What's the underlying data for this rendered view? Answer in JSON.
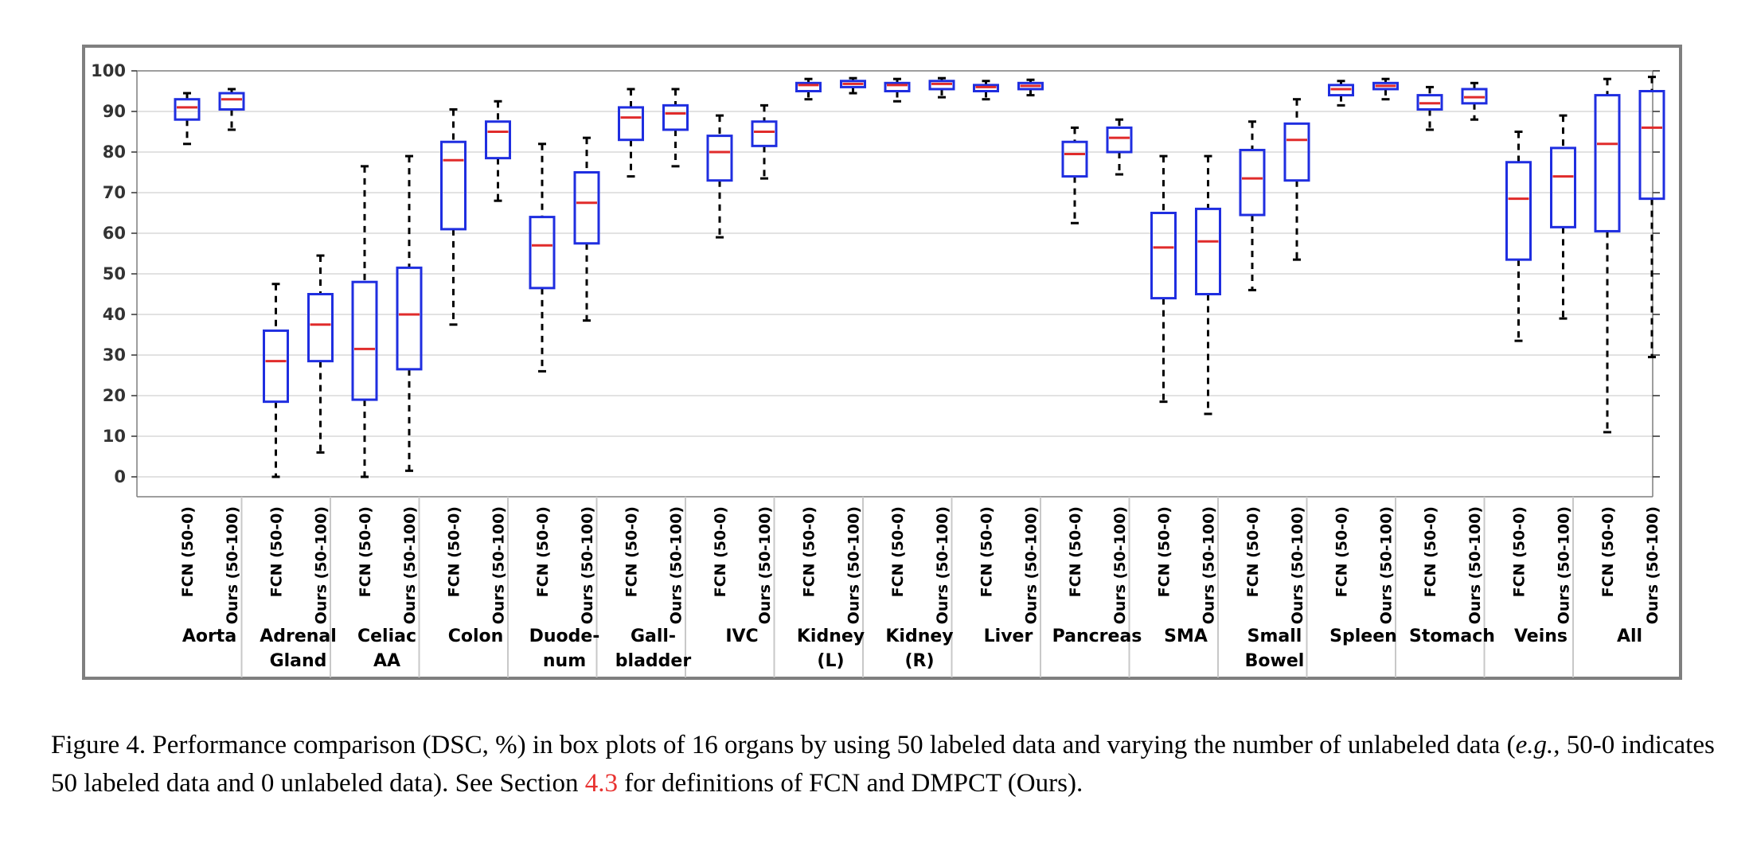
{
  "chart_data": {
    "type": "box",
    "ylim": [
      0,
      100
    ],
    "yticks": [
      0,
      10,
      20,
      30,
      40,
      50,
      60,
      70,
      80,
      90,
      100
    ],
    "grid": true,
    "series_labels": [
      "FCN (50-0)",
      "Ours (50-100)"
    ],
    "colors": {
      "box": "#1f2ee0",
      "median": "#e02b2b",
      "whisker": "#000000",
      "grid": "#d9d9d9",
      "frame": "#7f7f7f"
    },
    "groups": [
      {
        "label_lines": [
          "Aorta"
        ],
        "boxes": [
          {
            "label": "FCN (50-0)",
            "min": 82,
            "q1": 88,
            "median": 91,
            "q3": 93,
            "max": 94.5
          },
          {
            "label": "Ours (50-100)",
            "min": 85.5,
            "q1": 90.5,
            "median": 93,
            "q3": 94.5,
            "max": 95.5
          }
        ]
      },
      {
        "label_lines": [
          "Adrenal",
          "Gland"
        ],
        "boxes": [
          {
            "label": "FCN (50-0)",
            "min": 0,
            "q1": 18.5,
            "median": 28.5,
            "q3": 36,
            "max": 47.5
          },
          {
            "label": "Ours (50-100)",
            "min": 6,
            "q1": 28.5,
            "median": 37.5,
            "q3": 45,
            "max": 54.5
          }
        ]
      },
      {
        "label_lines": [
          "Celiac",
          "AA"
        ],
        "boxes": [
          {
            "label": "FCN (50-0)",
            "min": 0,
            "q1": 19,
            "median": 31.5,
            "q3": 48,
            "max": 76.5
          },
          {
            "label": "Ours (50-100)",
            "min": 1.5,
            "q1": 26.5,
            "median": 40,
            "q3": 51.5,
            "max": 79
          }
        ]
      },
      {
        "label_lines": [
          "Colon"
        ],
        "boxes": [
          {
            "label": "FCN (50-0)",
            "min": 37.5,
            "q1": 61,
            "median": 78,
            "q3": 82.5,
            "max": 90.5
          },
          {
            "label": "Ours (50-100)",
            "min": 68,
            "q1": 78.5,
            "median": 85,
            "q3": 87.5,
            "max": 92.5
          }
        ]
      },
      {
        "label_lines": [
          "Duode-",
          "num"
        ],
        "boxes": [
          {
            "label": "FCN (50-0)",
            "min": 26,
            "q1": 46.5,
            "median": 57,
            "q3": 64,
            "max": 82
          },
          {
            "label": "Ours (50-100)",
            "min": 38.5,
            "q1": 57.5,
            "median": 67.5,
            "q3": 75,
            "max": 83.5
          }
        ]
      },
      {
        "label_lines": [
          "Gall-",
          "bladder"
        ],
        "boxes": [
          {
            "label": "FCN (50-0)",
            "min": 74,
            "q1": 83,
            "median": 88.5,
            "q3": 91,
            "max": 95.5
          },
          {
            "label": "Ours (50-100)",
            "min": 76.5,
            "q1": 85.5,
            "median": 89.5,
            "q3": 91.5,
            "max": 95.5
          }
        ]
      },
      {
        "label_lines": [
          "IVC"
        ],
        "boxes": [
          {
            "label": "FCN (50-0)",
            "min": 59,
            "q1": 73,
            "median": 80,
            "q3": 84,
            "max": 89
          },
          {
            "label": "Ours (50-100)",
            "min": 73.5,
            "q1": 81.5,
            "median": 85,
            "q3": 87.5,
            "max": 91.5
          }
        ]
      },
      {
        "label_lines": [
          "Kidney",
          "(L)"
        ],
        "boxes": [
          {
            "label": "FCN (50-0)",
            "min": 93,
            "q1": 95,
            "median": 96.5,
            "q3": 97,
            "max": 98
          },
          {
            "label": "Ours (50-100)",
            "min": 94.5,
            "q1": 96,
            "median": 96.8,
            "q3": 97.5,
            "max": 98.2
          }
        ]
      },
      {
        "label_lines": [
          "Kidney",
          "(R)"
        ],
        "boxes": [
          {
            "label": "FCN (50-0)",
            "min": 92.5,
            "q1": 95,
            "median": 96.5,
            "q3": 97,
            "max": 98
          },
          {
            "label": "Ours (50-100)",
            "min": 93.5,
            "q1": 95.5,
            "median": 96.8,
            "q3": 97.5,
            "max": 98.2
          }
        ]
      },
      {
        "label_lines": [
          "Liver"
        ],
        "boxes": [
          {
            "label": "FCN (50-0)",
            "min": 93,
            "q1": 95,
            "median": 96,
            "q3": 96.5,
            "max": 97.5
          },
          {
            "label": "Ours (50-100)",
            "min": 94,
            "q1": 95.5,
            "median": 96.3,
            "q3": 97,
            "max": 97.8
          }
        ]
      },
      {
        "label_lines": [
          "Pancreas"
        ],
        "boxes": [
          {
            "label": "FCN (50-0)",
            "min": 62.5,
            "q1": 74,
            "median": 79.5,
            "q3": 82.5,
            "max": 86
          },
          {
            "label": "Ours (50-100)",
            "min": 74.5,
            "q1": 80,
            "median": 83.5,
            "q3": 86,
            "max": 88
          }
        ]
      },
      {
        "label_lines": [
          "SMA"
        ],
        "boxes": [
          {
            "label": "FCN (50-0)",
            "min": 18.5,
            "q1": 44,
            "median": 56.5,
            "q3": 65,
            "max": 79
          },
          {
            "label": "Ours (50-100)",
            "min": 15.5,
            "q1": 45,
            "median": 58,
            "q3": 66,
            "max": 79
          }
        ]
      },
      {
        "label_lines": [
          "Small",
          "Bowel"
        ],
        "boxes": [
          {
            "label": "FCN (50-0)",
            "min": 46,
            "q1": 64.5,
            "median": 73.5,
            "q3": 80.5,
            "max": 87.5
          },
          {
            "label": "Ours (50-100)",
            "min": 53.5,
            "q1": 73,
            "median": 83,
            "q3": 87,
            "max": 93
          }
        ]
      },
      {
        "label_lines": [
          "Spleen"
        ],
        "boxes": [
          {
            "label": "FCN (50-0)",
            "min": 91.5,
            "q1": 94,
            "median": 95.5,
            "q3": 96.5,
            "max": 97.5
          },
          {
            "label": "Ours (50-100)",
            "min": 93,
            "q1": 95.5,
            "median": 96.3,
            "q3": 97,
            "max": 98
          }
        ]
      },
      {
        "label_lines": [
          "Stomach"
        ],
        "boxes": [
          {
            "label": "FCN (50-0)",
            "min": 85.5,
            "q1": 90.5,
            "median": 92,
            "q3": 94,
            "max": 96
          },
          {
            "label": "Ours (50-100)",
            "min": 88,
            "q1": 92,
            "median": 93.5,
            "q3": 95.5,
            "max": 97
          }
        ]
      },
      {
        "label_lines": [
          "Veins"
        ],
        "boxes": [
          {
            "label": "FCN (50-0)",
            "min": 33.5,
            "q1": 53.5,
            "median": 68.5,
            "q3": 77.5,
            "max": 85
          },
          {
            "label": "Ours (50-100)",
            "min": 39,
            "q1": 61.5,
            "median": 74,
            "q3": 81,
            "max": 89
          }
        ]
      },
      {
        "label_lines": [
          "All"
        ],
        "boxes": [
          {
            "label": "FCN (50-0)",
            "min": 11,
            "q1": 60.5,
            "median": 82,
            "q3": 94,
            "max": 98
          },
          {
            "label": "Ours (50-100)",
            "min": 29.5,
            "q1": 68.5,
            "median": 86,
            "q3": 95,
            "max": 98.5
          }
        ]
      }
    ]
  },
  "caption": {
    "part1": "Figure 4. Performance comparison (DSC, %) in box plots of 16 organs by using 50 labeled data and varying the number of unlabeled data (",
    "eg": "e.g.",
    "part2": ", 50-0 indicates 50 labeled data and 0 unlabeled data). See Section ",
    "ref": "4.3",
    "part3": " for definitions of FCN and DMPCT (Ours)."
  }
}
